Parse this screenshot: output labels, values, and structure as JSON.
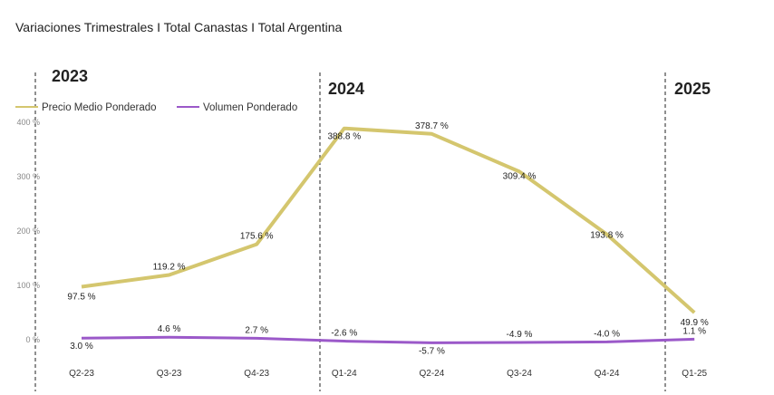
{
  "title": "Variaciones Trimestrales I Total Canastas I Total Argentina",
  "chart_data": {
    "type": "line",
    "title": "Variaciones Trimestrales I Total Canastas I Total Argentina",
    "categories": [
      "Q2-23",
      "Q3-23",
      "Q4-23",
      "Q1-24",
      "Q2-24",
      "Q3-24",
      "Q4-24",
      "Q1-25"
    ],
    "series": [
      {
        "name": "Precio Medio Ponderado",
        "color": "#d4c66e",
        "values": [
          97.5,
          119.2,
          175.6,
          388.8,
          378.7,
          309.4,
          193.8,
          49.9
        ],
        "labels": [
          "97.5 %",
          "119.2 %",
          "175.6 %",
          "388.8 %",
          "378.7 %",
          "309.4 %",
          "193.8 %",
          "49.9 %"
        ]
      },
      {
        "name": "Volumen Ponderado",
        "color": "#9b59c9",
        "values": [
          3.0,
          4.6,
          2.7,
          -2.6,
          -5.7,
          -4.9,
          -4.0,
          1.1
        ],
        "labels": [
          "3.0 %",
          "4.6 %",
          "2.7 %",
          "-2.6 %",
          "-5.7 %",
          "-4.9 %",
          "-4.0 %",
          "1.1 %"
        ]
      }
    ],
    "yticks": [
      "0 %",
      "100 %",
      "200 %",
      "300 %",
      "400 %"
    ],
    "ylim": [
      0,
      400
    ],
    "year_labels": [
      "2023",
      "2024",
      "2025"
    ],
    "legend": "top-left",
    "grid": false
  }
}
